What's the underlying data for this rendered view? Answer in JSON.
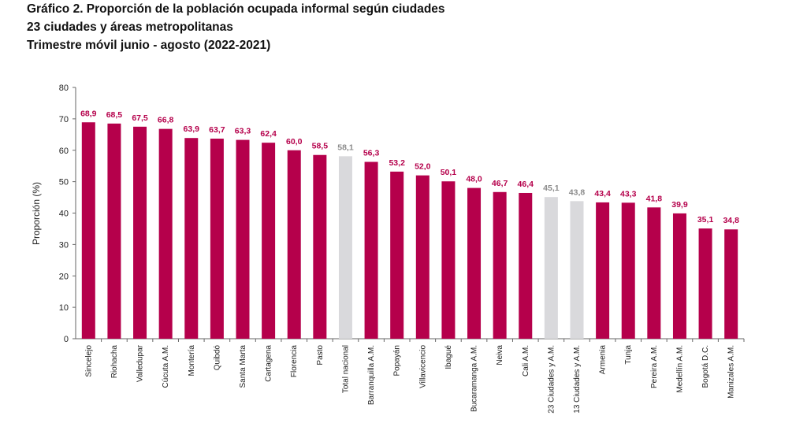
{
  "titles": {
    "line1": "Gráfico 2. Proporción de la población ocupada informal según ciudades",
    "line2": "23 ciudades y áreas metropolitanas",
    "line3": "Trimestre móvil junio - agosto (2022-2021)"
  },
  "colors": {
    "city": "#b5004b",
    "aggregate": "#d9d9dc",
    "label_city": "#b5004b",
    "label_aggregate": "#8c8c8c",
    "axis": "#666666"
  },
  "chart_data": {
    "type": "bar",
    "ylabel": "Proporción (%)",
    "xlabel": "",
    "ylim": [
      0,
      80
    ],
    "yticks": [
      0,
      10,
      20,
      30,
      40,
      50,
      60,
      70,
      80
    ],
    "grid": false,
    "categories": [
      "Sincelejo",
      "Riohacha",
      "Valledupar",
      "Cúcuta A.M.",
      "Montería",
      "Quibdó",
      "Santa Marta",
      "Cartagena",
      "Florencia",
      "Pasto",
      "Total nacional",
      "Barranquilla A.M.",
      "Popayán",
      "Villavicencio",
      "Ibagué",
      "Bucaramanga A.M.",
      "Neiva",
      "Cali A.M.",
      "23 Ciudades y A.M.",
      "13 Ciudades y A.M.",
      "Armenia",
      "Tunja",
      "Pereira A.M.",
      "Medellín A.M.",
      "Bogotá D.C.",
      "Manizales A.M."
    ],
    "values": [
      68.9,
      68.5,
      67.5,
      66.8,
      63.9,
      63.7,
      63.3,
      62.4,
      60.0,
      58.5,
      58.1,
      56.3,
      53.2,
      52.0,
      50.1,
      48.0,
      46.7,
      46.4,
      45.1,
      43.8,
      43.4,
      43.3,
      41.8,
      39.9,
      35.1,
      34.8
    ],
    "value_labels": [
      "68,9",
      "68,5",
      "67,5",
      "66,8",
      "63,9",
      "63,7",
      "63,3",
      "62,4",
      "60,0",
      "58,5",
      "58,1",
      "56,3",
      "53,2",
      "52,0",
      "50,1",
      "48,0",
      "46,7",
      "46,4",
      "45,1",
      "43,8",
      "43,4",
      "43,3",
      "41,8",
      "39,9",
      "35,1",
      "34,8"
    ],
    "highlighted_aggregates": [
      "Total nacional",
      "23 Ciudades y A.M.",
      "13 Ciudades y A.M."
    ]
  }
}
